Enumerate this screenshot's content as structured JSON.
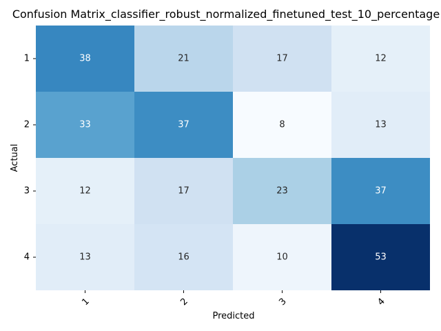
{
  "chart_data": {
    "type": "heatmap",
    "title": "Confusion Matrix_classifier_robust_normalized_finetuned_test_10_percentage",
    "xlabel": "Predicted",
    "ylabel": "Actual",
    "x_categories": [
      "1",
      "2",
      "3",
      "4"
    ],
    "y_categories": [
      "1",
      "2",
      "3",
      "4"
    ],
    "values": [
      [
        38,
        21,
        17,
        12
      ],
      [
        33,
        37,
        8,
        13
      ],
      [
        12,
        17,
        23,
        37
      ],
      [
        13,
        16,
        10,
        53
      ]
    ],
    "colormap": "Blues",
    "value_range": [
      8,
      53
    ],
    "colorbar": false,
    "annotations": true
  }
}
